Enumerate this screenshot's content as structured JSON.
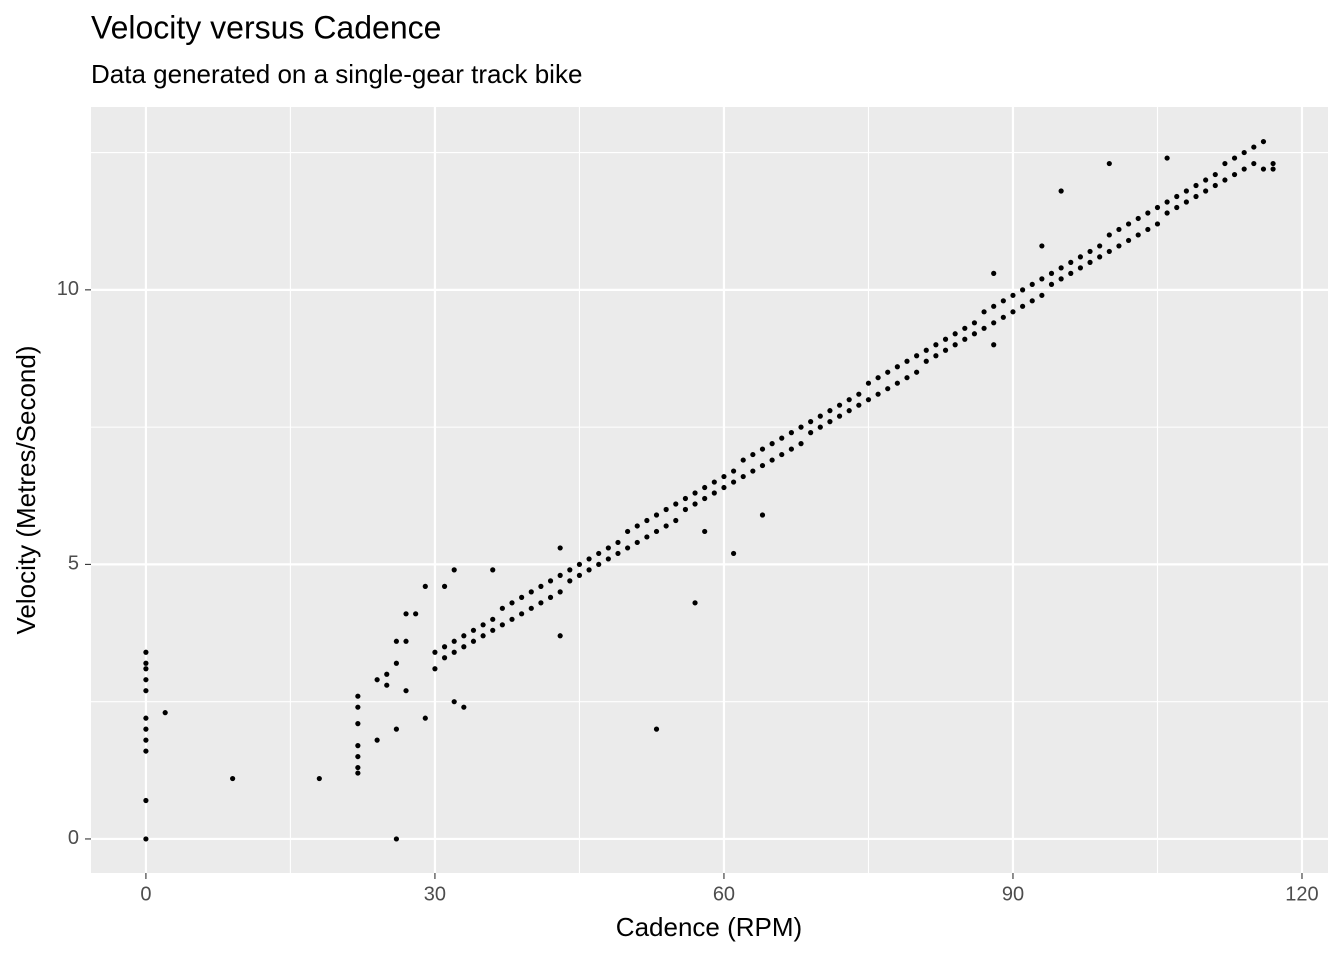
{
  "chart_data": {
    "type": "scatter",
    "title": "Velocity versus Cadence",
    "subtitle": "Data generated on a single-gear track bike",
    "x_label": "Cadence (RPM)",
    "y_label": "Velocity (Metres/Second)",
    "color": "#000000",
    "panel_color": "#ebebeb",
    "grid": true,
    "xlim": [
      -5.7,
      122.7
    ],
    "ylim": [
      -0.62,
      13.33
    ],
    "xticks": [
      0,
      30,
      60,
      90,
      120
    ],
    "yticks": [
      0,
      5,
      10
    ],
    "xminorticks": [
      15,
      45,
      75,
      105
    ],
    "yminorticks": [
      2.5,
      7.5,
      12.5
    ],
    "x": [
      0,
      0,
      0,
      0,
      0,
      0,
      0,
      0,
      0,
      0,
      0,
      2,
      9,
      18,
      22,
      22,
      22,
      22,
      22,
      22,
      22,
      24,
      24,
      25,
      25,
      26,
      26,
      26,
      26,
      27,
      27,
      27,
      28,
      29,
      29,
      31,
      32,
      32,
      33,
      36,
      43,
      43,
      53,
      57,
      58,
      61,
      64,
      95,
      100,
      106,
      93,
      88,
      88,
      116,
      117,
      30,
      30,
      31,
      31,
      32,
      32,
      33,
      33,
      34,
      34,
      35,
      35,
      36,
      36,
      37,
      37,
      38,
      38,
      39,
      39,
      40,
      40,
      41,
      41,
      42,
      42,
      43,
      43,
      44,
      44,
      45,
      45,
      46,
      46,
      47,
      47,
      48,
      48,
      49,
      49,
      50,
      50,
      51,
      51,
      52,
      52,
      53,
      53,
      54,
      54,
      55,
      55,
      56,
      56,
      57,
      57,
      58,
      58,
      59,
      59,
      60,
      60,
      61,
      61,
      62,
      62,
      63,
      63,
      64,
      64,
      65,
      65,
      66,
      66,
      67,
      67,
      68,
      68,
      69,
      69,
      70,
      70,
      71,
      71,
      72,
      72,
      73,
      73,
      74,
      74,
      75,
      75,
      76,
      76,
      77,
      77,
      78,
      78,
      79,
      79,
      80,
      80,
      81,
      81,
      82,
      82,
      83,
      83,
      84,
      84,
      85,
      85,
      86,
      86,
      87,
      87,
      88,
      88,
      89,
      89,
      90,
      90,
      91,
      91,
      92,
      92,
      93,
      93,
      94,
      94,
      95,
      95,
      96,
      96,
      97,
      97,
      98,
      98,
      99,
      99,
      100,
      100,
      101,
      101,
      102,
      102,
      103,
      103,
      104,
      104,
      105,
      105,
      106,
      106,
      107,
      107,
      108,
      108,
      109,
      109,
      110,
      110,
      111,
      111,
      112,
      112,
      113,
      113,
      114,
      114,
      115,
      115,
      116,
      117
    ],
    "y": [
      0,
      0.7,
      1.6,
      1.8,
      2.0,
      2.2,
      2.7,
      2.9,
      3.1,
      3.2,
      3.4,
      2.3,
      1.1,
      1.1,
      1.2,
      1.3,
      1.5,
      1.7,
      2.1,
      2.4,
      2.6,
      1.8,
      2.9,
      2.8,
      3.0,
      0,
      2.0,
      3.2,
      3.6,
      2.7,
      3.6,
      4.1,
      4.1,
      2.2,
      4.6,
      4.6,
      4.9,
      2.5,
      2.4,
      4.9,
      5.3,
      3.7,
      2.0,
      4.3,
      5.6,
      5.2,
      5.9,
      11.8,
      12.3,
      12.4,
      10.8,
      9.0,
      10.3,
      12.7,
      12.3,
      3.1,
      3.4,
      3.3,
      3.5,
      3.4,
      3.6,
      3.5,
      3.7,
      3.6,
      3.8,
      3.7,
      3.9,
      3.8,
      4.0,
      3.9,
      4.2,
      4.0,
      4.3,
      4.1,
      4.4,
      4.2,
      4.5,
      4.3,
      4.6,
      4.4,
      4.7,
      4.5,
      4.8,
      4.7,
      4.9,
      4.8,
      5.0,
      4.9,
      5.1,
      5.0,
      5.2,
      5.1,
      5.3,
      5.2,
      5.4,
      5.3,
      5.6,
      5.4,
      5.7,
      5.5,
      5.8,
      5.6,
      5.9,
      5.7,
      6.0,
      5.8,
      6.1,
      6.0,
      6.2,
      6.1,
      6.3,
      6.2,
      6.4,
      6.3,
      6.5,
      6.4,
      6.6,
      6.5,
      6.7,
      6.6,
      6.9,
      6.7,
      7.0,
      6.8,
      7.1,
      6.9,
      7.2,
      7.0,
      7.3,
      7.1,
      7.4,
      7.2,
      7.5,
      7.4,
      7.6,
      7.5,
      7.7,
      7.6,
      7.8,
      7.7,
      7.9,
      7.8,
      8.0,
      7.9,
      8.1,
      8.0,
      8.3,
      8.1,
      8.4,
      8.2,
      8.5,
      8.3,
      8.6,
      8.4,
      8.7,
      8.5,
      8.8,
      8.7,
      8.9,
      8.8,
      9.0,
      8.9,
      9.1,
      9.0,
      9.2,
      9.1,
      9.3,
      9.2,
      9.4,
      9.3,
      9.6,
      9.4,
      9.7,
      9.5,
      9.8,
      9.6,
      9.9,
      9.7,
      10.0,
      9.8,
      10.1,
      9.9,
      10.2,
      10.1,
      10.3,
      10.2,
      10.4,
      10.3,
      10.5,
      10.4,
      10.6,
      10.5,
      10.7,
      10.6,
      10.8,
      10.7,
      11.0,
      10.8,
      11.1,
      10.9,
      11.2,
      11.0,
      11.3,
      11.1,
      11.4,
      11.2,
      11.5,
      11.4,
      11.6,
      11.5,
      11.7,
      11.6,
      11.8,
      11.7,
      11.9,
      11.8,
      12.0,
      11.9,
      12.1,
      12.0,
      12.3,
      12.1,
      12.4,
      12.2,
      12.5,
      12.3,
      12.6,
      12.2,
      12.2
    ]
  }
}
